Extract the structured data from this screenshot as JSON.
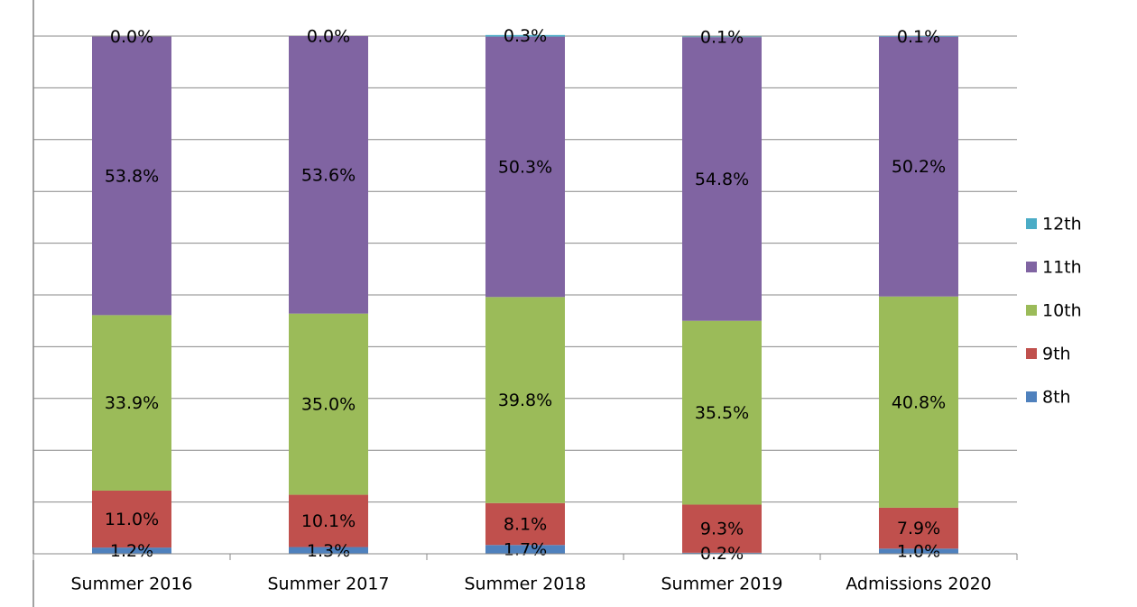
{
  "chart_data": {
    "type": "stacked_bar",
    "categories": [
      "Summer 2016",
      "Summer 2017",
      "Summer 2018",
      "Summer 2019",
      "Admissions 2020"
    ],
    "series": [
      {
        "name": "8th",
        "color": "#4f81bd",
        "values": [
          1.2,
          1.3,
          1.7,
          0.2,
          1.0
        ],
        "value_labels": [
          "1.2%",
          "1.3%",
          "1.7%",
          "0.2%",
          "1.0%"
        ]
      },
      {
        "name": "9th",
        "color": "#c0504d",
        "values": [
          11.0,
          10.1,
          8.1,
          9.3,
          7.9
        ],
        "value_labels": [
          "11.0%",
          "10.1%",
          "8.1%",
          "9.3%",
          "7.9%"
        ]
      },
      {
        "name": "10th",
        "color": "#9bbb59",
        "values": [
          33.9,
          35.0,
          39.8,
          35.5,
          40.8
        ],
        "value_labels": [
          "33.9%",
          "35.0%",
          "39.8%",
          "35.5%",
          "40.8%"
        ]
      },
      {
        "name": "11th",
        "color": "#8064a2",
        "values": [
          53.8,
          53.6,
          50.3,
          54.8,
          50.2
        ],
        "value_labels": [
          "53.8%",
          "53.6%",
          "50.3%",
          "54.8%",
          "50.2%"
        ]
      },
      {
        "name": "12th",
        "color": "#4bacc6",
        "values": [
          0.0,
          0.0,
          0.3,
          0.1,
          0.1
        ],
        "value_labels": [
          "0.0%",
          "0.0%",
          "0.3%",
          "0.1%",
          "0.1%"
        ]
      }
    ],
    "ylim": [
      0,
      100
    ],
    "yticks": [
      0,
      10,
      20,
      30,
      40,
      50,
      60,
      70,
      80,
      90,
      100
    ],
    "grid": true,
    "legend": "right"
  }
}
